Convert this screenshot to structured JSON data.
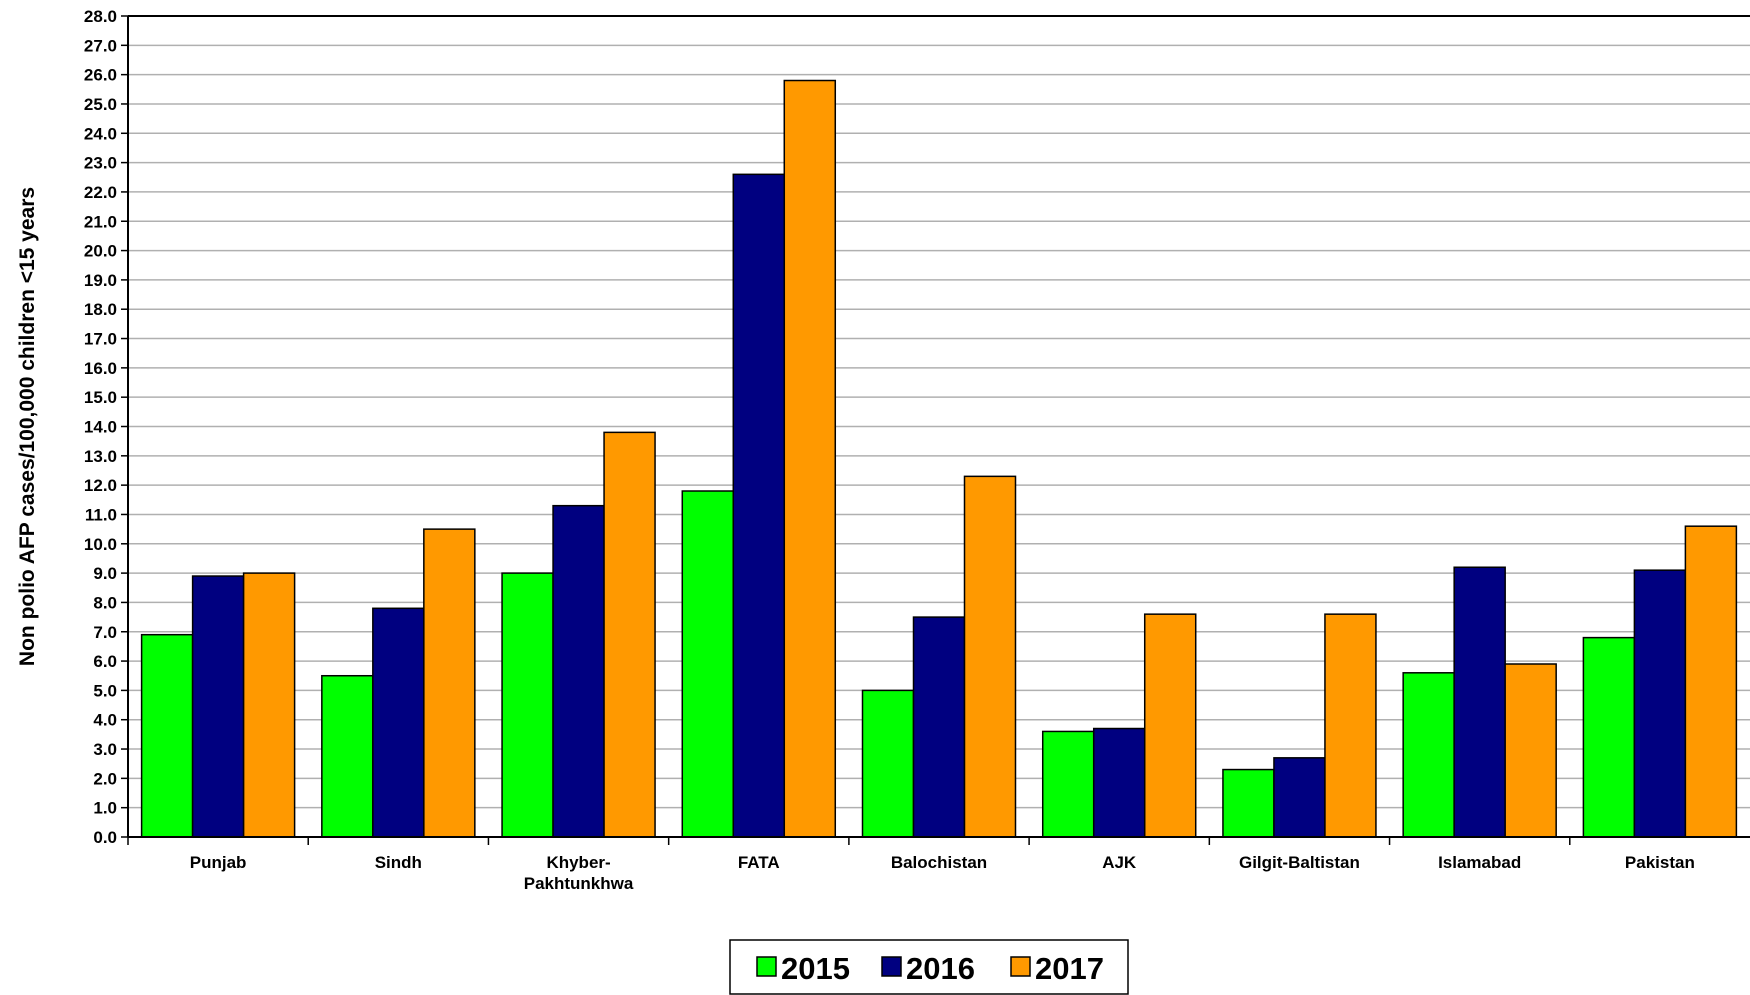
{
  "chart_data": {
    "type": "bar",
    "title": "",
    "xlabel": "",
    "ylabel": "Non polio AFP cases/100,000 children <15 years",
    "ylim": [
      0,
      28
    ],
    "ytick_step": 1,
    "ytick_decimals": 1,
    "grid": true,
    "legend_position": "bottom-center",
    "categories": [
      [
        "Punjab"
      ],
      [
        "Sindh"
      ],
      [
        "Khyber-",
        "Pakhtunkhwa"
      ],
      [
        "FATA"
      ],
      [
        "Balochistan"
      ],
      [
        "AJK"
      ],
      [
        "Gilgit-Baltistan"
      ],
      [
        "Islamabad"
      ],
      [
        "Pakistan"
      ]
    ],
    "series": [
      {
        "name": "2015",
        "color": "#00ff00",
        "values": [
          6.9,
          5.5,
          9.0,
          11.8,
          5.0,
          3.6,
          2.3,
          5.6,
          6.8
        ]
      },
      {
        "name": "2016",
        "color": "#000080",
        "values": [
          8.9,
          7.8,
          11.3,
          22.6,
          7.5,
          3.7,
          2.7,
          9.2,
          9.1
        ]
      },
      {
        "name": "2017",
        "color": "#ff9900",
        "values": [
          9.0,
          10.5,
          13.8,
          25.8,
          12.3,
          7.6,
          7.6,
          5.9,
          10.6
        ]
      }
    ]
  }
}
